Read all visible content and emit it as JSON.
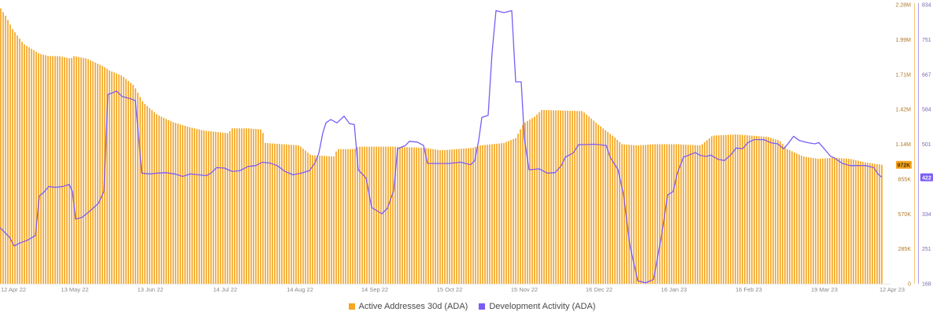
{
  "chart_data": {
    "type": "bar",
    "x_ticks": [
      "12 Apr 22",
      "13 May 22",
      "13 Jun 22",
      "14 Jul 22",
      "14 Aug 22",
      "14 Sep 22",
      "15 Oct 22",
      "15 Nov 22",
      "16 Dec 22",
      "16 Jan 23",
      "16 Feb 23",
      "19 Mar 23",
      "12 Apr 23"
    ],
    "y_left": {
      "ticks": [
        "0",
        "285K",
        "570K",
        "855K",
        "1.14M",
        "1.42M",
        "1.71M",
        "1.99M",
        "2.28M"
      ],
      "range": [
        0,
        2280000
      ],
      "color": "#f5a623"
    },
    "y_right": {
      "ticks": [
        "168",
        "251",
        "334",
        "417",
        "501",
        "584",
        "667",
        "751",
        "834"
      ],
      "range": [
        168,
        834
      ],
      "color": "#7b5cf5"
    },
    "series": [
      {
        "name": "Active Addresses 30d (ADA)",
        "kind": "bar",
        "axis": "left",
        "color": "#f5a623",
        "last_label": "972K",
        "keypoints": [
          [
            0,
            2260000
          ],
          [
            8,
            2180000
          ],
          [
            16,
            2080000
          ],
          [
            30,
            1960000
          ],
          [
            50,
            1880000
          ],
          [
            62,
            1860000
          ],
          [
            75,
            1860000
          ],
          [
            90,
            1840000
          ],
          [
            94,
            1860000
          ],
          [
            110,
            1840000
          ],
          [
            130,
            1780000
          ],
          [
            140,
            1740000
          ],
          [
            155,
            1700000
          ],
          [
            170,
            1620000
          ],
          [
            182,
            1480000
          ],
          [
            200,
            1380000
          ],
          [
            220,
            1320000
          ],
          [
            240,
            1280000
          ],
          [
            260,
            1250000
          ],
          [
            290,
            1230000
          ],
          [
            295,
            1270000
          ],
          [
            315,
            1270000
          ],
          [
            333,
            1260000
          ],
          [
            337,
            1150000
          ],
          [
            360,
            1140000
          ],
          [
            380,
            1130000
          ],
          [
            395,
            1050000
          ],
          [
            425,
            1040000
          ],
          [
            428,
            1100000
          ],
          [
            450,
            1100000
          ],
          [
            455,
            1120000
          ],
          [
            500,
            1120000
          ],
          [
            540,
            1110000
          ],
          [
            560,
            1090000
          ],
          [
            580,
            1100000
          ],
          [
            600,
            1110000
          ],
          [
            610,
            1130000
          ],
          [
            640,
            1150000
          ],
          [
            655,
            1190000
          ],
          [
            665,
            1310000
          ],
          [
            680,
            1370000
          ],
          [
            688,
            1420000
          ],
          [
            740,
            1410000
          ],
          [
            760,
            1300000
          ],
          [
            780,
            1200000
          ],
          [
            790,
            1140000
          ],
          [
            810,
            1130000
          ],
          [
            830,
            1140000
          ],
          [
            860,
            1140000
          ],
          [
            890,
            1130000
          ],
          [
            905,
            1210000
          ],
          [
            935,
            1220000
          ],
          [
            975,
            1200000
          ],
          [
            990,
            1170000
          ],
          [
            1000,
            1100000
          ],
          [
            1020,
            1040000
          ],
          [
            1040,
            1020000
          ],
          [
            1060,
            1030000
          ],
          [
            1080,
            1020000
          ],
          [
            1100,
            990000
          ],
          [
            1120,
            972000
          ]
        ]
      },
      {
        "name": "Development Activity (ADA)",
        "kind": "line",
        "axis": "right",
        "color": "#7b5cf5",
        "last_label": "422",
        "keypoints": [
          [
            0,
            302
          ],
          [
            12,
            279
          ],
          [
            18,
            258
          ],
          [
            25,
            265
          ],
          [
            35,
            272
          ],
          [
            45,
            283
          ],
          [
            50,
            378
          ],
          [
            55,
            385
          ],
          [
            62,
            400
          ],
          [
            70,
            398
          ],
          [
            80,
            400
          ],
          [
            88,
            405
          ],
          [
            92,
            388
          ],
          [
            96,
            322
          ],
          [
            104,
            326
          ],
          [
            112,
            338
          ],
          [
            118,
            348
          ],
          [
            125,
            360
          ],
          [
            132,
            388
          ],
          [
            137,
            620
          ],
          [
            142,
            623
          ],
          [
            148,
            628
          ],
          [
            155,
            615
          ],
          [
            165,
            610
          ],
          [
            172,
            605
          ],
          [
            176,
            520
          ],
          [
            180,
            432
          ],
          [
            190,
            430
          ],
          [
            200,
            432
          ],
          [
            210,
            433
          ],
          [
            222,
            430
          ],
          [
            232,
            424
          ],
          [
            242,
            430
          ],
          [
            252,
            428
          ],
          [
            262,
            426
          ],
          [
            268,
            432
          ],
          [
            275,
            445
          ],
          [
            285,
            444
          ],
          [
            295,
            436
          ],
          [
            305,
            438
          ],
          [
            315,
            448
          ],
          [
            325,
            450
          ],
          [
            333,
            458
          ],
          [
            343,
            456
          ],
          [
            352,
            450
          ],
          [
            362,
            436
          ],
          [
            372,
            428
          ],
          [
            383,
            432
          ],
          [
            393,
            438
          ],
          [
            400,
            456
          ],
          [
            405,
            480
          ],
          [
            410,
            528
          ],
          [
            414,
            552
          ],
          [
            420,
            560
          ],
          [
            428,
            552
          ],
          [
            437,
            568
          ],
          [
            444,
            550
          ],
          [
            450,
            548
          ],
          [
            455,
            440
          ],
          [
            465,
            420
          ],
          [
            472,
            350
          ],
          [
            485,
            335
          ],
          [
            492,
            348
          ],
          [
            500,
            390
          ],
          [
            505,
            490
          ],
          [
            515,
            498
          ],
          [
            520,
            508
          ],
          [
            530,
            506
          ],
          [
            538,
            498
          ],
          [
            543,
            455
          ],
          [
            555,
            455
          ],
          [
            570,
            455
          ],
          [
            585,
            458
          ],
          [
            598,
            452
          ],
          [
            603,
            462
          ],
          [
            608,
            510
          ],
          [
            612,
            565
          ],
          [
            620,
            570
          ],
          [
            625,
            720
          ],
          [
            630,
            820
          ],
          [
            640,
            815
          ],
          [
            650,
            820
          ],
          [
            655,
            650
          ],
          [
            662,
            650
          ],
          [
            666,
            515
          ],
          [
            672,
            440
          ],
          [
            685,
            442
          ],
          [
            695,
            432
          ],
          [
            705,
            433
          ],
          [
            713,
            450
          ],
          [
            718,
            470
          ],
          [
            728,
            480
          ],
          [
            735,
            500
          ],
          [
            745,
            500
          ],
          [
            755,
            501
          ],
          [
            770,
            498
          ],
          [
            775,
            470
          ],
          [
            785,
            440
          ],
          [
            792,
            380
          ],
          [
            800,
            260
          ],
          [
            810,
            175
          ],
          [
            820,
            170
          ],
          [
            830,
            178
          ],
          [
            840,
            280
          ],
          [
            848,
            380
          ],
          [
            855,
            388
          ],
          [
            860,
            430
          ],
          [
            868,
            470
          ],
          [
            875,
            475
          ],
          [
            883,
            481
          ],
          [
            890,
            474
          ],
          [
            897,
            472
          ],
          [
            903,
            475
          ],
          [
            912,
            465
          ],
          [
            920,
            462
          ],
          [
            928,
            475
          ],
          [
            935,
            492
          ],
          [
            943,
            490
          ],
          [
            950,
            505
          ],
          [
            958,
            512
          ],
          [
            970,
            512
          ],
          [
            980,
            504
          ],
          [
            988,
            502
          ],
          [
            995,
            490
          ],
          [
            1000,
            500
          ],
          [
            1008,
            520
          ],
          [
            1015,
            510
          ],
          [
            1025,
            505
          ],
          [
            1035,
            502
          ],
          [
            1040,
            505
          ],
          [
            1047,
            490
          ],
          [
            1055,
            472
          ],
          [
            1060,
            468
          ],
          [
            1070,
            455
          ],
          [
            1080,
            450
          ],
          [
            1090,
            450
          ],
          [
            1100,
            450
          ],
          [
            1110,
            445
          ],
          [
            1115,
            430
          ],
          [
            1120,
            422
          ]
        ]
      }
    ],
    "legend_position": "bottom-center",
    "grid": false
  }
}
